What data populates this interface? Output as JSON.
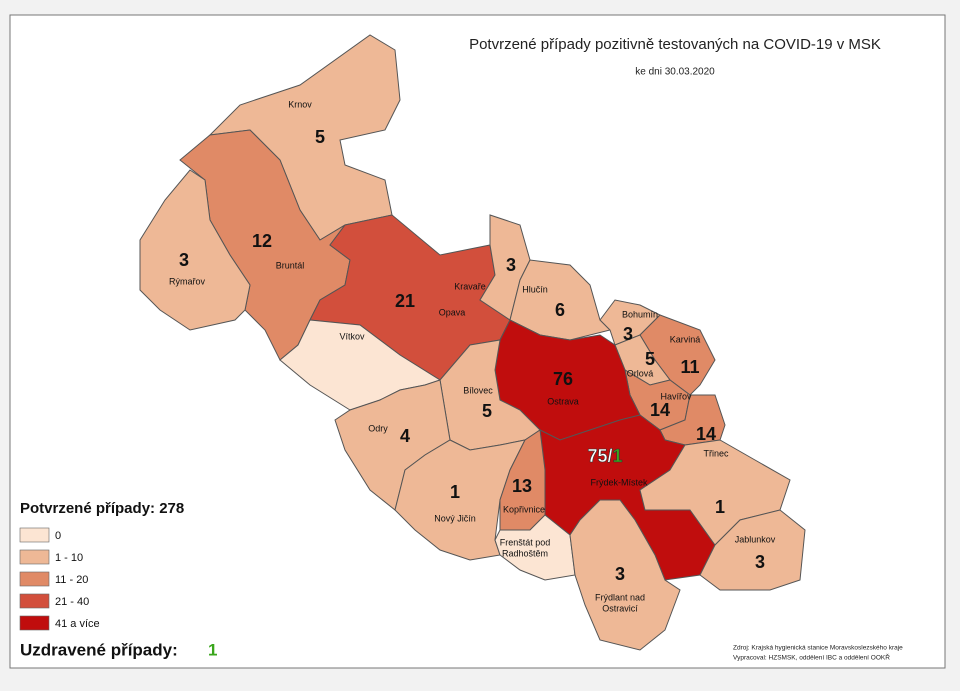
{
  "title": "Potvrzené případy pozitivně testovaných na COVID-19 v MSK",
  "subtitle": "ke dni 30.03.2020",
  "regions": [
    {
      "name": "Krnov",
      "value": 5,
      "color": "#eeb896"
    },
    {
      "name": "Bruntál",
      "value": 12,
      "color": "#e08a66"
    },
    {
      "name": "Rýmařov",
      "value": 3,
      "color": "#eeb896"
    },
    {
      "name": "Opava",
      "value": 21,
      "color": "#d24f3c"
    },
    {
      "name": "Vítkov",
      "value": null,
      "color": "#fce5d3"
    },
    {
      "name": "Kravaře",
      "value": 3,
      "color": "#eeb896"
    },
    {
      "name": "Hlučín",
      "value": 6,
      "color": "#eeb896"
    },
    {
      "name": "Bohumín",
      "value": 3,
      "color": "#eeb896"
    },
    {
      "name": "Karviná",
      "value": 11,
      "color": "#e08a66"
    },
    {
      "name": "Orlová",
      "value": 5,
      "color": "#eeb896"
    },
    {
      "name": "Havířov",
      "value": 14,
      "color": "#e08a66"
    },
    {
      "name": null,
      "value": 14,
      "color": "#e08a66"
    },
    {
      "name": "Ostrava",
      "value": 76,
      "color": "#c00d0d"
    },
    {
      "name": "Frýdek-Místek",
      "value": 75,
      "separator": "/",
      "recovered": 1,
      "color": "#c00d0d"
    },
    {
      "name": "Bílovec",
      "value": 5,
      "color": "#eeb896"
    },
    {
      "name": "Odry",
      "value": 4,
      "color": "#eeb896"
    },
    {
      "name": "Nový Jičín",
      "value": 1,
      "color": "#eeb896"
    },
    {
      "name": "Kopřivnice",
      "value": 13,
      "color": "#e08a66"
    },
    {
      "name": [
        "Frenštát pod",
        "Radhoštěm"
      ],
      "value": null,
      "color": "#fce5d3"
    },
    {
      "name": [
        "Frýdlant nad",
        "Ostravicí"
      ],
      "value": 3,
      "color": "#eeb896"
    },
    {
      "name": "Třinec",
      "value": 1,
      "color": "#eeb896"
    },
    {
      "name": "Jablunkov",
      "value": 3,
      "color": "#eeb896"
    }
  ],
  "legend": {
    "title": "Potvrzené případy: 278",
    "items": [
      {
        "label": "0",
        "color": "#fce5d3"
      },
      {
        "label": "1 - 10",
        "color": "#eeb896"
      },
      {
        "label": "11 - 20",
        "color": "#e08a66"
      },
      {
        "label": "21 - 40",
        "color": "#d24f3c"
      },
      {
        "label": "41 a více",
        "color": "#c00d0d"
      }
    ]
  },
  "recovered": {
    "label": "Uzdravené případy:",
    "value": 1,
    "color": "#3aa61c"
  },
  "source": [
    "Zdroj: Krajská hygienická stanice Moravskoslezského kraje",
    "Vypracoval: HZSMSK, oddělení IBC a oddělení OOKŘ"
  ]
}
